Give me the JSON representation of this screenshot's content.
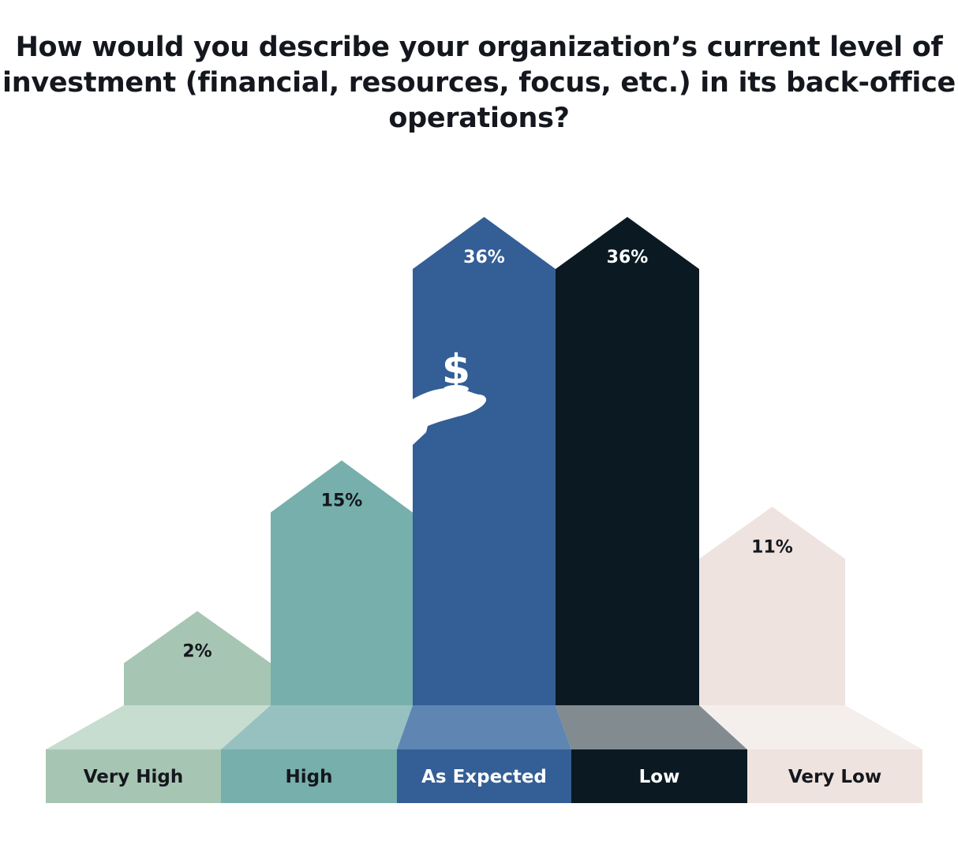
{
  "title_lines": [
    "How would you describe your organization’s current level of",
    "investment (financial, resources, focus, etc.) in its back-office",
    "operations?"
  ],
  "icon": "hand-dollar-icon",
  "icon_glyph": "$",
  "chart_data": {
    "type": "bar",
    "title": "How would you describe your organization’s current level of investment (financial, resources, focus, etc.) in its back-office operations?",
    "categories": [
      "Very High",
      "High",
      "As Expected",
      "Low",
      "Very Low"
    ],
    "values": [
      2,
      15,
      36,
      36,
      11
    ],
    "value_labels": [
      "2%",
      "15%",
      "36%",
      "36%",
      "11%"
    ],
    "unit": "%",
    "colors": [
      "#a7c5b3",
      "#76afab",
      "#335e96",
      "#0a1922",
      "#eee3df"
    ],
    "base_colors": [
      "#c6ddd0",
      "#97c1c0",
      "#5f86b2",
      "#818b90",
      "#f4eeec"
    ],
    "label_colors": [
      "#14171d",
      "#14171d",
      "#ffffff",
      "#ffffff",
      "#14171d"
    ],
    "grid": false,
    "legend": "none"
  }
}
